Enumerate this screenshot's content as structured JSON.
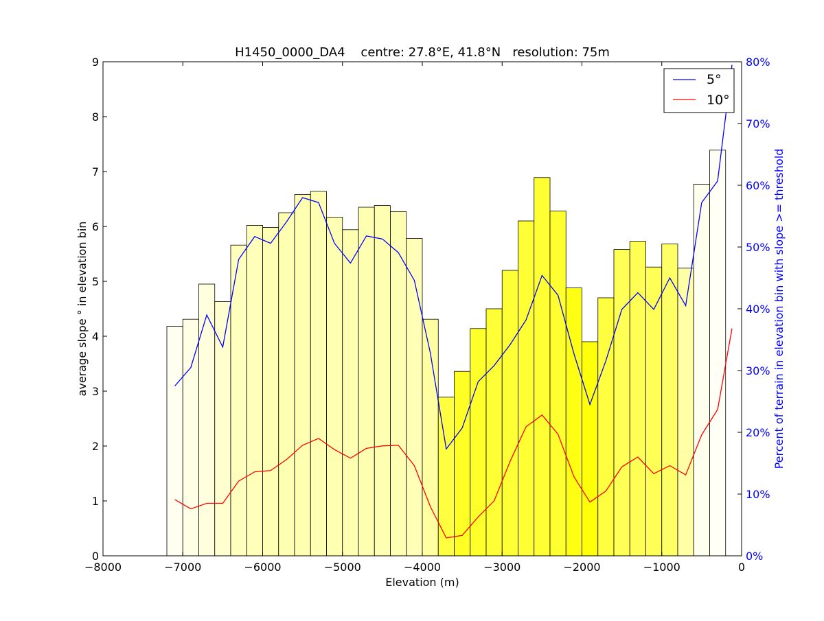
{
  "chart_data": {
    "type": "bar",
    "title": "H1450_0000_DA4    centre: 27.8°E, 41.8°N   resolution: 75m",
    "xlabel": "Elevation (m)",
    "ylabel": "average slope ° in elevation bin",
    "y2label": "Percent of terrain in elevation bin with slope >= threshold",
    "xlim": [
      -8000,
      0
    ],
    "ylim": [
      0,
      9
    ],
    "y2lim": [
      0,
      80
    ],
    "xticks": [
      -8000,
      -7000,
      -6000,
      -5000,
      -4000,
      -3000,
      -2000,
      -1000,
      0
    ],
    "yticks": [
      0,
      1,
      2,
      3,
      4,
      5,
      6,
      7,
      8,
      9
    ],
    "y2ticks": [
      "0%",
      "10%",
      "20%",
      "30%",
      "40%",
      "50%",
      "60%",
      "70%",
      "80%"
    ],
    "bin_width": 200,
    "bars": {
      "centers": [
        -7100,
        -6900,
        -6700,
        -6500,
        -6300,
        -6100,
        -5900,
        -5700,
        -5500,
        -5300,
        -5100,
        -4900,
        -4700,
        -4500,
        -4300,
        -4100,
        -3900,
        -3700,
        -3500,
        -3300,
        -3100,
        -2900,
        -2700,
        -2500,
        -2300,
        -2100,
        -1900,
        -1700,
        -1500,
        -1300,
        -1100,
        -900,
        -700,
        -500,
        -300
      ],
      "values": [
        4.18,
        4.31,
        4.95,
        4.63,
        5.66,
        6.02,
        5.98,
        6.25,
        6.58,
        6.64,
        6.17,
        5.94,
        6.35,
        6.38,
        6.27,
        5.78,
        4.31,
        2.89,
        3.36,
        4.14,
        4.5,
        5.2,
        6.1,
        6.89,
        6.28,
        4.88,
        3.9,
        4.7,
        5.58,
        5.73,
        5.26,
        5.68,
        5.24,
        6.77,
        7.39
      ],
      "fills": [
        "#fffff0",
        "#ffffe6",
        "#ffffdd",
        "#ffffcf",
        "#ffffbe",
        "#ffffb9",
        "#ffffb3",
        "#ffffb1",
        "#ffffb1",
        "#ffffb1",
        "#ffffb1",
        "#ffffb1",
        "#ffffb1",
        "#ffffb1",
        "#ffffb1",
        "#ffffb7",
        "#ffffa2",
        "#ffff40",
        "#ffff26",
        "#ffff2a",
        "#ffff35",
        "#ffff35",
        "#ffff33",
        "#ffff33",
        "#ffff30",
        "#ffff14",
        "#ffff0a",
        "#ffff40",
        "#ffff55",
        "#ffff55",
        "#ffff55",
        "#ffff66",
        "#ffffa5",
        "#ffffee",
        "#fffff6"
      ]
    },
    "series": [
      {
        "name": "5°",
        "color": "#0000ff",
        "axis": "right",
        "x": [
          -7100,
          -6900,
          -6700,
          -6500,
          -6300,
          -6100,
          -5900,
          -5700,
          -5500,
          -5300,
          -5100,
          -4900,
          -4700,
          -4500,
          -4300,
          -4100,
          -3900,
          -3700,
          -3500,
          -3300,
          -3100,
          -2900,
          -2700,
          -2500,
          -2300,
          -2100,
          -1900,
          -1700,
          -1500,
          -1300,
          -1100,
          -900,
          -700,
          -500,
          -300,
          -120
        ],
        "values": [
          27.5,
          30.5,
          39.0,
          33.8,
          48.0,
          51.7,
          50.6,
          54.1,
          58.0,
          57.2,
          50.6,
          47.4,
          51.8,
          51.3,
          49.1,
          44.6,
          32.9,
          17.3,
          20.7,
          28.2,
          30.8,
          34.2,
          38.2,
          45.4,
          42.2,
          32.7,
          24.5,
          31.6,
          39.9,
          42.6,
          39.9,
          45.0,
          40.5,
          57.2,
          60.7,
          79.5
        ]
      },
      {
        "name": "10°",
        "color": "#ff0000",
        "axis": "right",
        "x": [
          -7100,
          -6900,
          -6700,
          -6500,
          -6300,
          -6100,
          -5900,
          -5700,
          -5500,
          -5300,
          -5100,
          -4900,
          -4700,
          -4500,
          -4300,
          -4100,
          -3900,
          -3700,
          -3500,
          -3300,
          -3100,
          -2900,
          -2700,
          -2500,
          -2300,
          -2100,
          -1900,
          -1700,
          -1500,
          -1300,
          -1100,
          -900,
          -700,
          -500,
          -300,
          -120
        ],
        "values": [
          9.1,
          7.6,
          8.5,
          8.5,
          12.1,
          13.6,
          13.8,
          15.6,
          17.9,
          19.0,
          17.2,
          15.8,
          17.4,
          17.8,
          17.9,
          14.6,
          8.0,
          2.9,
          3.3,
          6.3,
          8.9,
          15.3,
          20.9,
          22.8,
          19.7,
          12.8,
          8.7,
          10.5,
          14.4,
          16.0,
          13.3,
          14.6,
          13.1,
          19.6,
          23.7,
          36.8
        ]
      }
    ],
    "legend": {
      "position": "top-right",
      "items": [
        "5°",
        "10°"
      ]
    }
  }
}
